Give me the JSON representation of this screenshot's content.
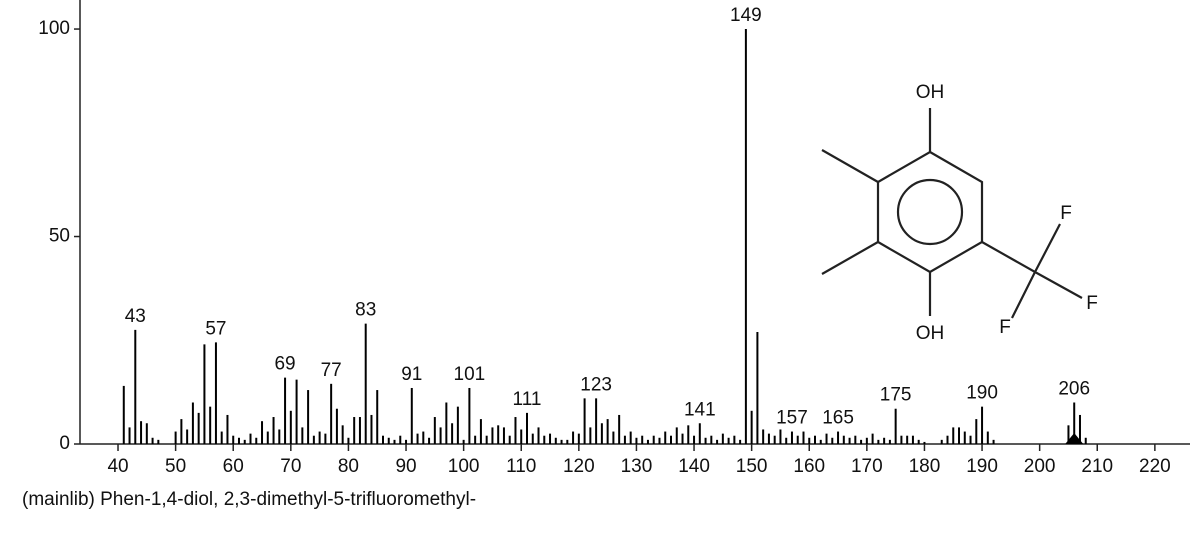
{
  "chart_data": {
    "type": "stem",
    "caption": "(mainlib) Phen-1,4-diol, 2,3-dimethyl-5-trifluoromethyl-",
    "x": [
      41,
      42,
      43,
      44,
      45,
      46,
      47,
      50,
      51,
      52,
      53,
      54,
      55,
      56,
      57,
      58,
      59,
      60,
      61,
      62,
      63,
      64,
      65,
      66,
      67,
      68,
      69,
      70,
      71,
      72,
      73,
      74,
      75,
      76,
      77,
      78,
      79,
      80,
      81,
      82,
      83,
      84,
      85,
      86,
      87,
      88,
      89,
      90,
      91,
      92,
      93,
      94,
      95,
      96,
      97,
      98,
      99,
      100,
      101,
      102,
      103,
      104,
      105,
      106,
      107,
      108,
      109,
      110,
      111,
      112,
      113,
      114,
      115,
      116,
      117,
      118,
      119,
      120,
      121,
      122,
      123,
      124,
      125,
      126,
      127,
      128,
      129,
      130,
      131,
      132,
      133,
      134,
      135,
      136,
      137,
      138,
      139,
      140,
      141,
      142,
      143,
      144,
      145,
      146,
      147,
      148,
      149,
      150,
      151,
      152,
      153,
      154,
      155,
      156,
      157,
      158,
      159,
      160,
      161,
      162,
      163,
      164,
      165,
      166,
      167,
      168,
      169,
      170,
      171,
      172,
      173,
      174,
      175,
      176,
      177,
      178,
      179,
      180,
      183,
      184,
      185,
      186,
      187,
      188,
      189,
      190,
      191,
      192,
      205,
      206,
      207,
      208
    ],
    "values": [
      14,
      4,
      27.5,
      5.5,
      5,
      1.5,
      1,
      3,
      6,
      3.5,
      10,
      7.5,
      24,
      9,
      24.5,
      3,
      7,
      2,
      1.5,
      1,
      2.5,
      1.5,
      5.5,
      3,
      6.5,
      3.5,
      16,
      8,
      15.5,
      4,
      13,
      2,
      3,
      2.5,
      14.5,
      8.5,
      4.5,
      1.5,
      6.5,
      6.5,
      29,
      7,
      13,
      2,
      1.5,
      1,
      2,
      1,
      13.5,
      2.5,
      3,
      1.5,
      6.5,
      4,
      10,
      5,
      9,
      1,
      13.5,
      2,
      6,
      2,
      4,
      4.5,
      4,
      2,
      6.5,
      3.5,
      7.5,
      2.5,
      4,
      2,
      2.5,
      1.5,
      1,
      1,
      3,
      2.5,
      11,
      4,
      11,
      5,
      6,
      3,
      7,
      2,
      3,
      1.5,
      2,
      1,
      2,
      1.5,
      3,
      2,
      4,
      2.5,
      4.5,
      2,
      5,
      1.5,
      2,
      1,
      2.5,
      1.5,
      2,
      1,
      100,
      8,
      27,
      3.5,
      2.5,
      2,
      3.5,
      1.5,
      3,
      2,
      3,
      1.5,
      2,
      1,
      2.5,
      1.5,
      3,
      2,
      1.5,
      2,
      1,
      1.5,
      2.5,
      1,
      1.5,
      1,
      8.5,
      2,
      2,
      2,
      1,
      0.5,
      1,
      2,
      4,
      4,
      3,
      2,
      6,
      9,
      3,
      1,
      4.5,
      10,
      7,
      1.5
    ],
    "color": "#000000",
    "peak_labels": [
      43,
      57,
      69,
      77,
      83,
      91,
      101,
      111,
      123,
      141,
      149,
      157,
      165,
      175,
      190,
      206
    ],
    "molecular_ion": 206,
    "xlim": [
      33.4,
      226.1
    ],
    "xticks": [
      40,
      50,
      60,
      70,
      80,
      90,
      100,
      110,
      120,
      130,
      140,
      150,
      160,
      170,
      180,
      190,
      200,
      210,
      220
    ],
    "ylim": [
      0,
      107
    ],
    "yticks": [
      0,
      50,
      100
    ]
  },
  "structure": {
    "top_label": "OH",
    "bottom_label": "OH",
    "fluorine_labels": [
      "F",
      "F",
      "F"
    ]
  }
}
